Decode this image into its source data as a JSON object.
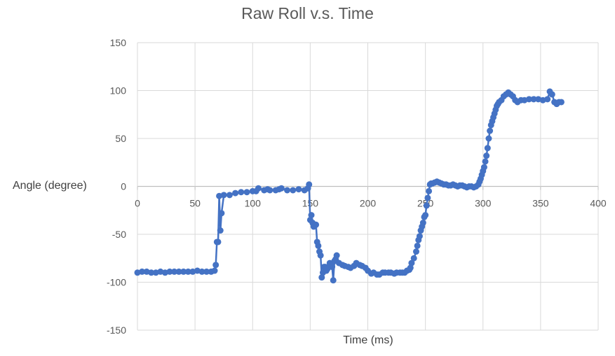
{
  "chart_data": {
    "type": "line",
    "title": "Raw Roll v.s. Time",
    "xlabel": "Time (ms)",
    "ylabel": "Angle (degree)",
    "xlim": [
      0,
      400
    ],
    "ylim": [
      -150,
      150
    ],
    "x_ticks": [
      0,
      50,
      100,
      150,
      200,
      250,
      300,
      350,
      400
    ],
    "y_ticks": [
      150,
      100,
      50,
      0,
      -50,
      -100,
      -150
    ],
    "x_tick_labels": [
      "0",
      "50",
      "100",
      "150",
      "200",
      "250",
      "300",
      "350",
      "400"
    ],
    "y_tick_labels": [
      "150",
      "100",
      "50",
      "0",
      "-50",
      "-100",
      "-150"
    ],
    "grid": true,
    "legend": "none",
    "series_color": "#4472C4",
    "series": [
      {
        "x": [
          0,
          4,
          8,
          12,
          16,
          20,
          24,
          28,
          32,
          36,
          40,
          44,
          48,
          52,
          56,
          60,
          64,
          67,
          68,
          69,
          70,
          71,
          72,
          73,
          75,
          80,
          85,
          90,
          95,
          100,
          103,
          105,
          110,
          113,
          115,
          120,
          123,
          125,
          130,
          135,
          140,
          145,
          148,
          149,
          150,
          151,
          152,
          153,
          154,
          155,
          156,
          157,
          158,
          159,
          160,
          161,
          162,
          163,
          164,
          165,
          166,
          167,
          168,
          169,
          170,
          171,
          172,
          173,
          175,
          178,
          180,
          183,
          185,
          188,
          190,
          193,
          195,
          198,
          200,
          203,
          205,
          208,
          210,
          213,
          215,
          218,
          220,
          223,
          225,
          228,
          230,
          232,
          234,
          236,
          237,
          238,
          240,
          242,
          243,
          244,
          245,
          246,
          247,
          248,
          249,
          250,
          251,
          252,
          253,
          254,
          255,
          256,
          258,
          260,
          262,
          264,
          266,
          268,
          270,
          272,
          274,
          276,
          278,
          280,
          282,
          284,
          286,
          288,
          290,
          292,
          294,
          296,
          297,
          298,
          299,
          300,
          301,
          302,
          303,
          304,
          305,
          306,
          307,
          308,
          309,
          310,
          311,
          312,
          313,
          314,
          316,
          318,
          320,
          322,
          324,
          326,
          328,
          330,
          333,
          336,
          340,
          344,
          348,
          352,
          356,
          358,
          360,
          362,
          364,
          366,
          368
        ],
        "values": [
          -90,
          -89,
          -89,
          -90,
          -90,
          -89,
          -90,
          -89,
          -89,
          -89,
          -89,
          -89,
          -89,
          -88,
          -89,
          -89,
          -89,
          -88,
          -82,
          -58,
          -58,
          -10,
          -46,
          -28,
          -9,
          -9,
          -7,
          -6,
          -6,
          -5,
          -5,
          -2,
          -4,
          -3,
          -4,
          -4,
          -3,
          -2,
          -4,
          -4,
          -3,
          -4,
          -2,
          2,
          -35,
          -30,
          -38,
          -42,
          -40,
          -40,
          -58,
          -62,
          -68,
          -72,
          -95,
          -90,
          -84,
          -84,
          -88,
          -86,
          -84,
          -80,
          -82,
          -84,
          -98,
          -78,
          -76,
          -72,
          -80,
          -82,
          -83,
          -84,
          -85,
          -83,
          -80,
          -82,
          -83,
          -85,
          -88,
          -91,
          -90,
          -92,
          -92,
          -90,
          -90,
          -90,
          -90,
          -91,
          -90,
          -90,
          -90,
          -90,
          -88,
          -87,
          -85,
          -80,
          -75,
          -68,
          -62,
          -56,
          -52,
          -46,
          -42,
          -38,
          -32,
          -30,
          -20,
          -12,
          -5,
          2,
          3,
          3,
          4,
          5,
          4,
          3,
          2,
          2,
          1,
          1,
          2,
          1,
          0,
          1,
          1,
          0,
          -1,
          0,
          0,
          -1,
          0,
          2,
          5,
          8,
          12,
          16,
          20,
          26,
          32,
          40,
          50,
          58,
          64,
          68,
          72,
          76,
          80,
          84,
          86,
          88,
          90,
          94,
          96,
          98,
          96,
          94,
          90,
          88,
          90,
          90,
          91,
          91,
          91,
          90,
          91,
          99,
          96,
          88,
          86,
          88,
          88
        ]
      }
    ]
  }
}
